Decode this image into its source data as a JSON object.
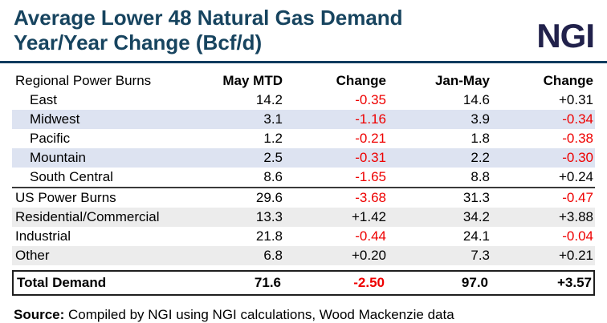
{
  "header": {
    "title_line1": "Average Lower 48 Natural Gas Demand",
    "title_line2": "Year/Year Change (Bcf/d)",
    "logo_text": "NGI"
  },
  "colors": {
    "title": "#17445f",
    "logo": "#21214b",
    "divider": "#0c3b5e",
    "negative_value": "#ee0000",
    "row_highlight_blue": "#dde3f1",
    "row_highlight_gray": "#ececec"
  },
  "chart_data": {
    "type": "table",
    "title": "Average Lower 48 Natural Gas Demand Year/Year Change (Bcf/d)",
    "columns": [
      "Regional Power Burns",
      "May MTD",
      "Change",
      "Jan-May",
      "Change"
    ],
    "rows": [
      {
        "label": "East",
        "values": [
          "14.2",
          "-0.35",
          "14.6",
          "+0.31"
        ]
      },
      {
        "label": "Midwest",
        "values": [
          "3.1",
          "-1.16",
          "3.9",
          "-0.34"
        ]
      },
      {
        "label": "Pacific",
        "values": [
          "1.2",
          "-0.21",
          "1.8",
          "-0.38"
        ]
      },
      {
        "label": "Mountain",
        "values": [
          "2.5",
          "-0.31",
          "2.2",
          "-0.30"
        ]
      },
      {
        "label": "South Central",
        "values": [
          "8.6",
          "-1.65",
          "8.8",
          "+0.24"
        ]
      },
      {
        "label": "US Power Burns",
        "values": [
          "29.6",
          "-3.68",
          "31.3",
          "-0.47"
        ]
      },
      {
        "label": "Residential/Commercial",
        "values": [
          "13.3",
          "+1.42",
          "34.2",
          "+3.88"
        ]
      },
      {
        "label": "Industrial",
        "values": [
          "21.8",
          "-0.44",
          "24.1",
          "-0.04"
        ]
      },
      {
        "label": "Other",
        "values": [
          "6.8",
          "+0.20",
          "7.3",
          "+0.21"
        ]
      }
    ],
    "total": {
      "label": "Total Demand",
      "values": [
        "71.6",
        "-2.50",
        "97.0",
        "+3.57"
      ]
    },
    "value_color_rule": "negative values shown in red, positive in black"
  },
  "source": {
    "label": "Source:",
    "text": "Compiled by NGI using NGI calculations, Wood Mackenzie data"
  }
}
